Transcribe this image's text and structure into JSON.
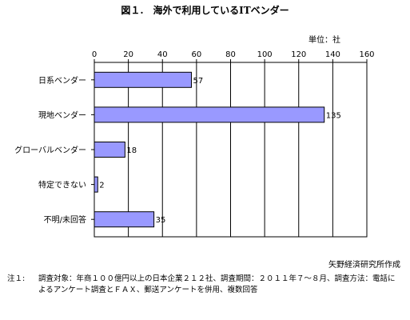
{
  "title": "図１.　海外で利用しているITベンダー",
  "unit_label": "単位：社",
  "source": "矢野経済研究所作成",
  "note": {
    "label": "注１:",
    "text": "調査対象：年商１００億円以上の日本企業２１２社、調査期間：２０１１年７～８月、調査方法：電話によるアンケート調査とＦＡＸ、郵送アンケートを併用、複数回答"
  },
  "colors": {
    "bar_fill": "#9999ff",
    "bar_stroke": "#000000",
    "grid": "#000000"
  },
  "chart_data": {
    "type": "bar",
    "orientation": "horizontal",
    "categories": [
      "日系ベンダー",
      "現地ベンダー",
      "グローバルベンダー",
      "特定できない",
      "不明/未回答"
    ],
    "values": [
      57,
      135,
      18,
      2,
      35
    ],
    "value_labels": [
      "57",
      "135",
      "18",
      "2",
      "35"
    ],
    "xlim": [
      0,
      160
    ],
    "x_ticks": [
      "0",
      "20",
      "40",
      "60",
      "80",
      "100",
      "120",
      "140",
      "160"
    ],
    "x_axis_position": "top",
    "grid": "vertical"
  }
}
